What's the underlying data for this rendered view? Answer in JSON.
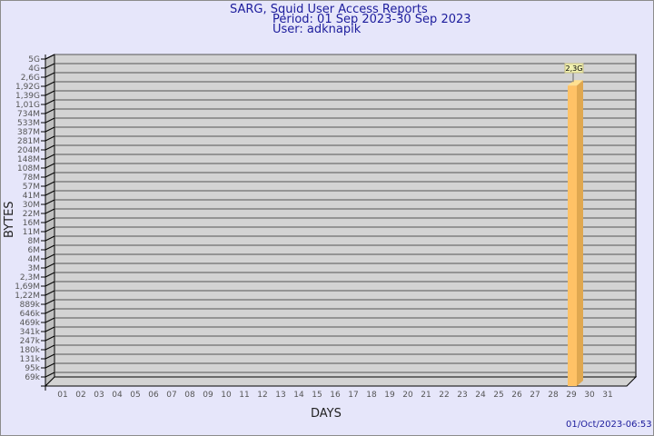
{
  "header": {
    "title": "SARG, Squid User Access Reports",
    "period": "Period: 01 Sep 2023-30 Sep 2023",
    "user": "User: adknapik"
  },
  "footer": {
    "timestamp": "01/Oct/2023-06:53"
  },
  "chart_data": {
    "type": "bar",
    "title": "SARG, Squid User Access Reports",
    "xlabel": "DAYS",
    "ylabel": "BYTES",
    "y_ticks": [
      "5G",
      "4G",
      "2,6G",
      "1,92G",
      "1,39G",
      "1,01G",
      "734M",
      "533M",
      "387M",
      "281M",
      "204M",
      "148M",
      "108M",
      "78M",
      "57M",
      "41M",
      "30M",
      "22M",
      "16M",
      "11M",
      "8M",
      "6M",
      "4M",
      "3M",
      "2,3M",
      "1,69M",
      "1,22M",
      "889k",
      "646k",
      "469k",
      "341k",
      "247k",
      "180k",
      "131k",
      "95k",
      "69k"
    ],
    "y_scale": "log",
    "categories": [
      "01",
      "02",
      "03",
      "04",
      "05",
      "06",
      "07",
      "08",
      "09",
      "10",
      "11",
      "12",
      "13",
      "14",
      "15",
      "16",
      "17",
      "18",
      "19",
      "20",
      "21",
      "22",
      "23",
      "24",
      "25",
      "26",
      "27",
      "28",
      "29",
      "30",
      "31"
    ],
    "values": [
      {
        "day": "29",
        "value": "2,3G",
        "bytes": 2300000000
      }
    ],
    "grid": true,
    "style": "3d",
    "colors": {
      "bar": "#ffc266",
      "bar_side": "#e0a850",
      "wall": "#d3d3d3",
      "label_bg": "#f0f0b0",
      "text": "#1c1c9c"
    }
  }
}
